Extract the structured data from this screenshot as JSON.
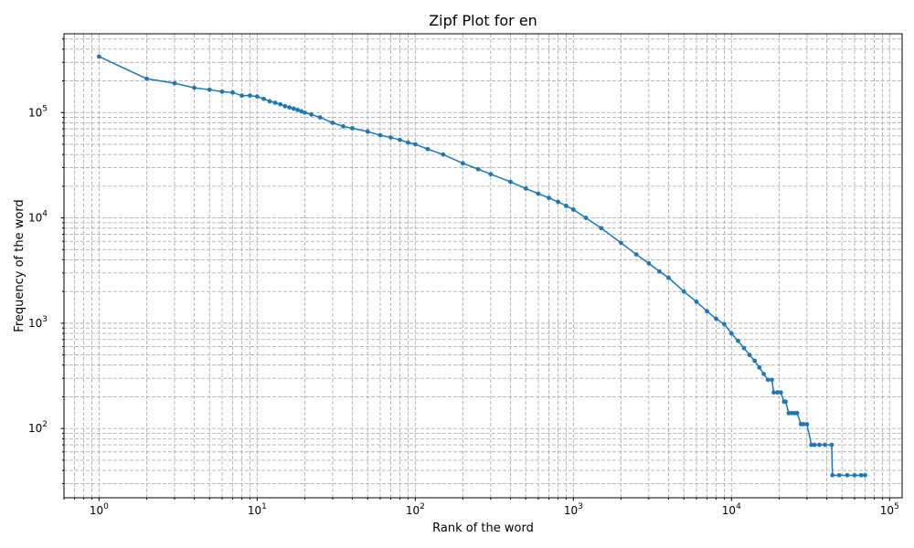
{
  "chart_data": {
    "type": "line",
    "title": "Zipf Plot for en",
    "xlabel": "Rank of the word",
    "ylabel": "Frequency of the word",
    "x_scale": "log",
    "y_scale": "log",
    "xlim": [
      0.6,
      120000
    ],
    "ylim": [
      22,
      560000
    ],
    "grid": true,
    "grid_which": "both",
    "x_ticks": [
      {
        "base": "10",
        "exp": "0",
        "value": 1
      },
      {
        "base": "10",
        "exp": "1",
        "value": 10
      },
      {
        "base": "10",
        "exp": "2",
        "value": 100
      },
      {
        "base": "10",
        "exp": "3",
        "value": 1000
      },
      {
        "base": "10",
        "exp": "4",
        "value": 10000
      },
      {
        "base": "10",
        "exp": "5",
        "value": 100000
      }
    ],
    "y_ticks": [
      {
        "base": "10",
        "exp": "2",
        "value": 100
      },
      {
        "base": "10",
        "exp": "3",
        "value": 1000
      },
      {
        "base": "10",
        "exp": "4",
        "value": 10000
      },
      {
        "base": "10",
        "exp": "5",
        "value": 100000
      }
    ],
    "line_color": "#1f77b4",
    "series": [
      {
        "x": [
          1,
          2,
          3,
          4,
          5,
          6,
          7,
          8,
          9,
          10,
          11,
          12,
          13,
          14,
          15,
          16,
          17,
          18,
          19,
          20,
          22,
          25,
          30,
          35,
          40,
          50,
          60,
          70,
          80,
          90,
          100,
          120,
          150,
          200,
          250,
          300,
          400,
          500,
          600,
          700,
          800,
          900,
          1000,
          1200,
          1500,
          2000,
          2500,
          3000,
          3500,
          4000,
          5000,
          6000,
          7000,
          8000,
          9000,
          10000,
          11000,
          12000,
          13000,
          14000,
          15000,
          16000,
          17000,
          18000,
          18500,
          19500,
          20500,
          21500,
          22000,
          23000,
          24000,
          25000,
          26000,
          27500,
          28500,
          30000,
          32000,
          33500,
          36000,
          39000,
          43000,
          43500,
          48000,
          54000,
          60000,
          66000,
          70000
        ],
        "y": [
          340000,
          210000,
          190000,
          172000,
          165000,
          158000,
          155000,
          145000,
          145000,
          142000,
          135000,
          128000,
          124000,
          120000,
          115000,
          112000,
          109000,
          106000,
          103000,
          100000,
          96000,
          90000,
          80000,
          74000,
          71000,
          66000,
          61000,
          58000,
          55000,
          52000,
          50000,
          45000,
          40000,
          33000,
          29000,
          26000,
          22000,
          19000,
          17000,
          15500,
          14200,
          13000,
          12000,
          10000,
          8000,
          5800,
          4500,
          3700,
          3100,
          2700,
          2000,
          1600,
          1300,
          1100,
          980,
          800,
          680,
          580,
          500,
          440,
          380,
          330,
          290,
          290,
          220,
          220,
          220,
          180,
          180,
          140,
          140,
          140,
          140,
          110,
          110,
          110,
          70,
          70,
          70,
          70,
          70,
          36,
          36,
          36,
          36,
          36,
          36
        ]
      }
    ]
  }
}
